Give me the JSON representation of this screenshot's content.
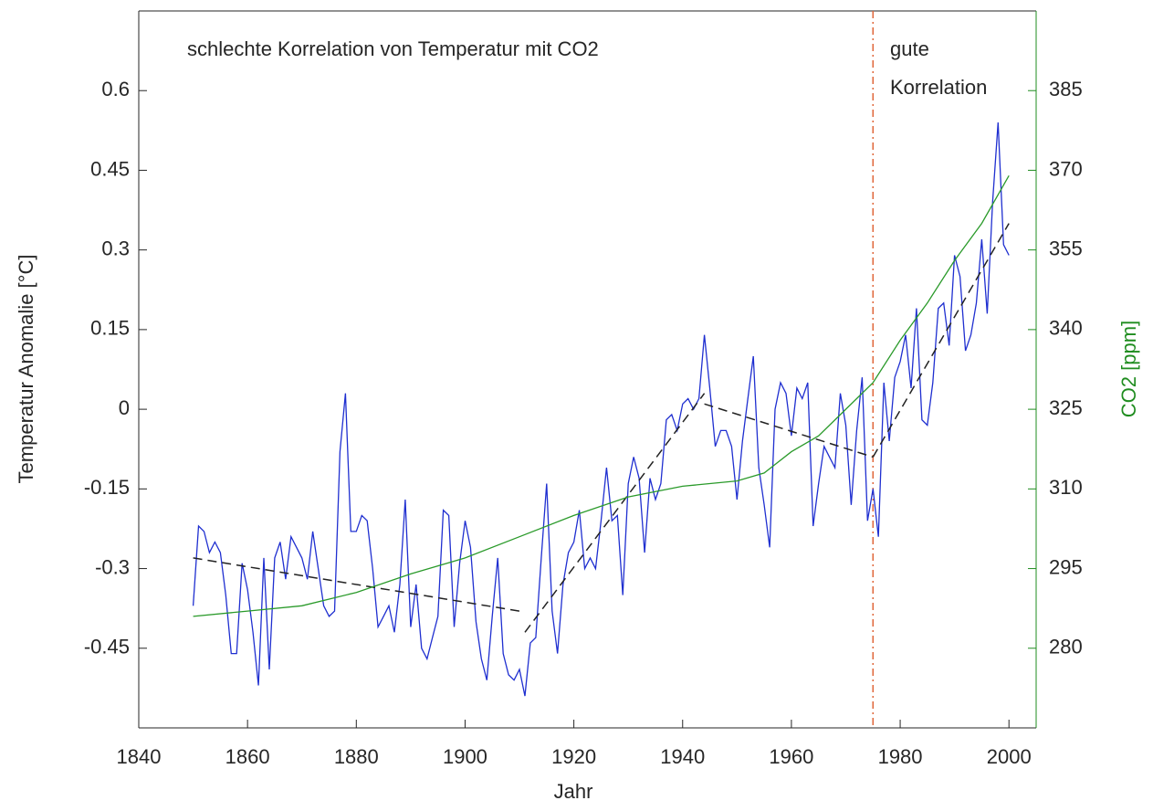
{
  "chart_data": {
    "type": "line",
    "xlabel": "Jahr",
    "ylabel": "Temperatur Anomalie [°C]",
    "y2label": "CO2 [ppm]",
    "annotations": [
      "schlechte Korrelation von Temperatur mit CO2",
      "gute",
      "Korrelation"
    ],
    "xlim": [
      1840,
      2005
    ],
    "xticks": [
      1840,
      1860,
      1880,
      1900,
      1920,
      1940,
      1960,
      1980,
      2000
    ],
    "ylim": [
      -0.6,
      0.75
    ],
    "yticks": [
      -0.45,
      -0.3,
      -0.15,
      0,
      0.15,
      0.3,
      0.45,
      0.6
    ],
    "y2lim": [
      265,
      400
    ],
    "y2ticks": [
      280,
      295,
      310,
      325,
      340,
      355,
      370,
      385
    ],
    "y2color": "#1f8c1f",
    "vline": {
      "x": 1975,
      "color": "#e0663a"
    },
    "series": [
      {
        "color": "#1f2fd0",
        "style": "solid",
        "x": [
          1850,
          1851,
          1852,
          1853,
          1854,
          1855,
          1856,
          1857,
          1858,
          1859,
          1860,
          1861,
          1862,
          1863,
          1864,
          1865,
          1866,
          1867,
          1868,
          1869,
          1870,
          1871,
          1872,
          1873,
          1874,
          1875,
          1876,
          1877,
          1878,
          1879,
          1880,
          1881,
          1882,
          1883,
          1884,
          1885,
          1886,
          1887,
          1888,
          1889,
          1890,
          1891,
          1892,
          1893,
          1894,
          1895,
          1896,
          1897,
          1898,
          1899,
          1900,
          1901,
          1902,
          1903,
          1904,
          1905,
          1906,
          1907,
          1908,
          1909,
          1910,
          1911,
          1912,
          1913,
          1914,
          1915,
          1916,
          1917,
          1918,
          1919,
          1920,
          1921,
          1922,
          1923,
          1924,
          1925,
          1926,
          1927,
          1928,
          1929,
          1930,
          1931,
          1932,
          1933,
          1934,
          1935,
          1936,
          1937,
          1938,
          1939,
          1940,
          1941,
          1942,
          1943,
          1944,
          1945,
          1946,
          1947,
          1948,
          1949,
          1950,
          1951,
          1952,
          1953,
          1954,
          1955,
          1956,
          1957,
          1958,
          1959,
          1960,
          1961,
          1962,
          1963,
          1964,
          1965,
          1966,
          1967,
          1968,
          1969,
          1970,
          1971,
          1972,
          1973,
          1974,
          1975,
          1976,
          1977,
          1978,
          1979,
          1980,
          1981,
          1982,
          1983,
          1984,
          1985,
          1986,
          1987,
          1988,
          1989,
          1990,
          1991,
          1992,
          1993,
          1994,
          1995,
          1996,
          1997,
          1998,
          1999,
          2000
        ],
        "values": [
          -0.37,
          -0.22,
          -0.23,
          -0.27,
          -0.25,
          -0.27,
          -0.35,
          -0.46,
          -0.46,
          -0.29,
          -0.34,
          -0.42,
          -0.52,
          -0.28,
          -0.49,
          -0.28,
          -0.25,
          -0.32,
          -0.24,
          -0.26,
          -0.28,
          -0.32,
          -0.23,
          -0.3,
          -0.37,
          -0.39,
          -0.38,
          -0.08,
          0.03,
          -0.23,
          -0.23,
          -0.2,
          -0.21,
          -0.3,
          -0.41,
          -0.39,
          -0.37,
          -0.42,
          -0.33,
          -0.17,
          -0.41,
          -0.33,
          -0.45,
          -0.47,
          -0.43,
          -0.39,
          -0.19,
          -0.2,
          -0.41,
          -0.29,
          -0.21,
          -0.26,
          -0.4,
          -0.47,
          -0.51,
          -0.39,
          -0.28,
          -0.46,
          -0.5,
          -0.51,
          -0.49,
          -0.54,
          -0.44,
          -0.43,
          -0.28,
          -0.14,
          -0.38,
          -0.46,
          -0.33,
          -0.27,
          -0.25,
          -0.19,
          -0.3,
          -0.28,
          -0.3,
          -0.21,
          -0.11,
          -0.21,
          -0.2,
          -0.35,
          -0.14,
          -0.09,
          -0.13,
          -0.27,
          -0.13,
          -0.17,
          -0.14,
          -0.02,
          -0.01,
          -0.04,
          0.01,
          0.02,
          0,
          0.02,
          0.14,
          0.04,
          -0.07,
          -0.04,
          -0.04,
          -0.07,
          -0.17,
          -0.06,
          0.02,
          0.1,
          -0.11,
          -0.18,
          -0.26,
          0,
          0.05,
          0.03,
          -0.05,
          0.04,
          0.02,
          0.05,
          -0.22,
          -0.14,
          -0.07,
          -0.09,
          -0.11,
          0.03,
          -0.03,
          -0.18,
          -0.04,
          0.06,
          -0.21,
          -0.15,
          -0.24,
          0.05,
          -0.06,
          0.06,
          0.09,
          0.14,
          0.04,
          0.19,
          -0.02,
          -0.03,
          0.05,
          0.19,
          0.2,
          0.12,
          0.29,
          0.25,
          0.11,
          0.14,
          0.2,
          0.32,
          0.18,
          0.39,
          0.54,
          0.31,
          0.29
        ]
      },
      {
        "color": "#222222",
        "style": "dashed",
        "x": [
          1850,
          1910
        ],
        "values": [
          -0.28,
          -0.38
        ]
      },
      {
        "color": "#222222",
        "style": "dashed",
        "x": [
          1911,
          1944
        ],
        "values": [
          -0.42,
          0.03
        ]
      },
      {
        "color": "#222222",
        "style": "dashed",
        "x": [
          1944,
          1975
        ],
        "values": [
          0.01,
          -0.09
        ]
      },
      {
        "color": "#222222",
        "style": "dashed",
        "x": [
          1975,
          2000
        ],
        "values": [
          -0.09,
          0.35
        ]
      },
      {
        "color": "#2a9a2a",
        "style": "solid",
        "axis": "y2",
        "x": [
          1850,
          1860,
          1870,
          1880,
          1890,
          1900,
          1910,
          1920,
          1930,
          1940,
          1950,
          1955,
          1960,
          1965,
          1970,
          1975,
          1980,
          1985,
          1990,
          1995,
          2000
        ],
        "values": [
          286,
          287,
          288,
          290.5,
          294,
          297,
          301,
          305,
          308.5,
          310.5,
          311.5,
          313,
          317,
          320,
          325,
          330,
          338,
          345,
          353,
          360,
          369
        ]
      }
    ]
  }
}
